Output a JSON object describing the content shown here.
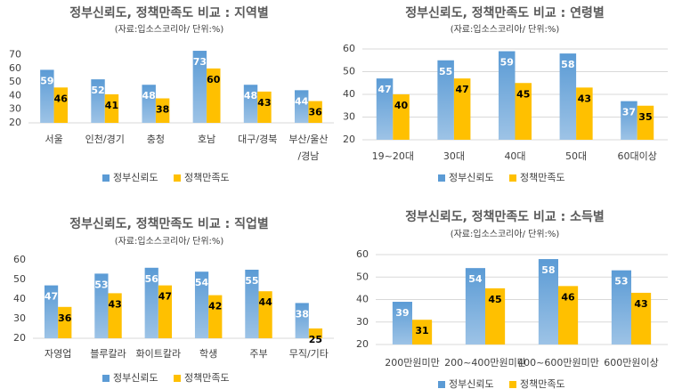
{
  "chart_data": [
    {
      "type": "bar",
      "title": "정부신뢰도, 정책만족도 비교 : 지역별",
      "subtitle": "(자료:입소스코리아/ 단위:%)",
      "categories": [
        "서울",
        "인천/경기",
        "충청",
        "호남",
        "대구/경북",
        "부산/울산\n/경남"
      ],
      "series": [
        {
          "name": "정부신뢰도",
          "color": "#5b9bd5",
          "values": [
            59,
            52,
            48,
            73,
            48,
            44
          ]
        },
        {
          "name": "정책만족도",
          "color": "#ffc000",
          "values": [
            46,
            41,
            38,
            60,
            43,
            36
          ]
        }
      ],
      "ylim": [
        20,
        75
      ],
      "yticks": [
        20,
        30,
        40,
        50,
        60,
        70
      ],
      "grid": false,
      "legend": "bottom"
    },
    {
      "type": "bar",
      "title": "정부신뢰도, 정책만족도 비교 : 연령별",
      "subtitle": "(자료:입소스코리아/ 단위:%)",
      "categories": [
        "19~20대",
        "30대",
        "40대",
        "50대",
        "60대이상"
      ],
      "series": [
        {
          "name": "정부신뢰도",
          "color": "#5b9bd5",
          "values": [
            47,
            55,
            59,
            58,
            37
          ]
        },
        {
          "name": "정책만족도",
          "color": "#ffc000",
          "values": [
            40,
            47,
            45,
            43,
            35
          ]
        }
      ],
      "ylim": [
        20,
        60
      ],
      "yticks": [
        20,
        30,
        40,
        50,
        60
      ],
      "grid": true,
      "legend": "bottom"
    },
    {
      "type": "bar",
      "title": "정부신뢰도, 정책만족도 비교 : 직업별",
      "subtitle": "(자료:입소스코리아/ 단위:%)",
      "categories": [
        "자영업",
        "블루칼라",
        "화이트칼라",
        "학생",
        "주부",
        "무직/기타"
      ],
      "series": [
        {
          "name": "정부신뢰도",
          "color": "#5b9bd5",
          "values": [
            47,
            53,
            56,
            54,
            55,
            38
          ]
        },
        {
          "name": "정책만족도",
          "color": "#ffc000",
          "values": [
            36,
            43,
            47,
            42,
            44,
            25
          ]
        }
      ],
      "ylim": [
        20,
        60
      ],
      "yticks": [
        20,
        30,
        40,
        50,
        60
      ],
      "grid": false,
      "legend": "bottom"
    },
    {
      "type": "bar",
      "title": "정부신뢰도, 정책만족도 비교 : 소득별",
      "subtitle": "(자료:입소스코리아/ 단위:%)",
      "categories": [
        "200만원미만",
        "200~400만원미만",
        "400~600만원미만",
        "600만원이상"
      ],
      "series": [
        {
          "name": "정부신뢰도",
          "color": "#5b9bd5",
          "values": [
            39,
            54,
            58,
            53
          ]
        },
        {
          "name": "정책만족도",
          "color": "#ffc000",
          "values": [
            31,
            45,
            46,
            43
          ]
        }
      ],
      "ylim": [
        20,
        60
      ],
      "yticks": [
        20,
        30,
        40,
        50,
        60
      ],
      "grid": true,
      "legend": "bottom"
    }
  ]
}
